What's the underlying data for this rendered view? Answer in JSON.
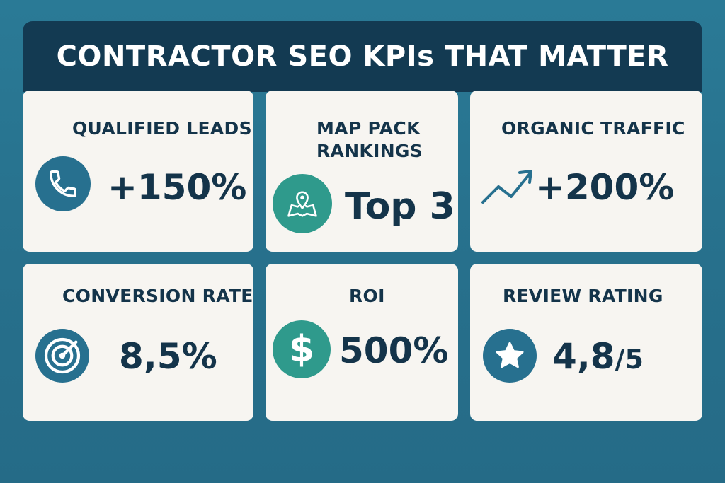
{
  "title": "CONTRACTOR SEO KPIs THAT MATTER",
  "cards": [
    {
      "label": "QUALIFIED LEADS",
      "value": "+150%",
      "icon": "phone-icon"
    },
    {
      "label_line1": "MAP PACK",
      "label_line2": "RANKINGS",
      "value": "Top 3",
      "icon": "map-pin-icon"
    },
    {
      "label": "ORGANIC TRAFFIC",
      "value": "+200%",
      "icon": "trend-up-icon"
    },
    {
      "label": "CONVERSION RATE",
      "value": "8,5%",
      "icon": "target-icon"
    },
    {
      "label": "ROI",
      "value": "500%",
      "icon": "dollar-icon"
    },
    {
      "label": "REVIEW RATING",
      "value": "4,8",
      "value_suffix": "/5",
      "icon": "star-icon"
    }
  ],
  "colors": {
    "background": "#2a7a96",
    "title_bar": "#133a52",
    "card": "#f7f5f1",
    "text": "#14344a",
    "icon_blue": "#27708f",
    "icon_teal": "#2f9a8c"
  }
}
